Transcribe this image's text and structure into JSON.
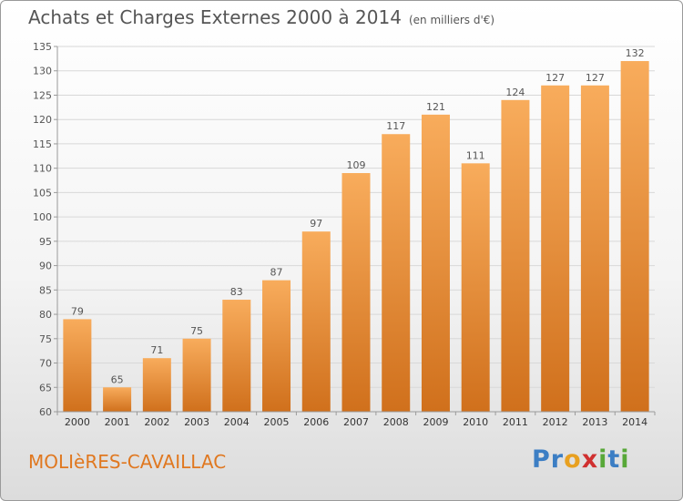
{
  "header": {
    "title": "Achats et Charges Externes 2000 à 2014",
    "unit": "(en milliers d'€)"
  },
  "footer": {
    "commune": "MOLIèRES-CAVAILLAC"
  },
  "logo": {
    "text": "Proxiti",
    "letters": [
      {
        "ch": "P",
        "color": "#3c7ec4"
      },
      {
        "ch": "r",
        "color": "#3c7ec4"
      },
      {
        "ch": "o",
        "color": "#e8a020"
      },
      {
        "ch": "x",
        "color": "#d03030"
      },
      {
        "ch": "i",
        "color": "#58a838"
      },
      {
        "ch": "t",
        "color": "#3c7ec4"
      },
      {
        "ch": "i",
        "color": "#58a838"
      }
    ]
  },
  "colors": {
    "bar_top": "#f8ac5c",
    "bar_bottom": "#d0701c",
    "grid": "#d8d8d8",
    "axis": "#9a9a9a",
    "text": "#555555"
  },
  "chart_data": {
    "type": "bar",
    "title": "Achats et Charges Externes 2000 à 2014",
    "subtitle": "(en milliers d'€)",
    "xlabel": "",
    "ylabel": "",
    "categories": [
      "2000",
      "2001",
      "2002",
      "2003",
      "2004",
      "2005",
      "2006",
      "2007",
      "2008",
      "2009",
      "2010",
      "2011",
      "2012",
      "2013",
      "2014"
    ],
    "values": [
      79,
      65,
      71,
      75,
      83,
      87,
      97,
      109,
      117,
      121,
      111,
      124,
      127,
      127,
      132
    ],
    "ylim": [
      60,
      135
    ],
    "yticks": [
      60,
      65,
      70,
      75,
      80,
      85,
      90,
      95,
      100,
      105,
      110,
      115,
      120,
      125,
      130,
      135
    ],
    "grid": true,
    "data_labels": true
  }
}
